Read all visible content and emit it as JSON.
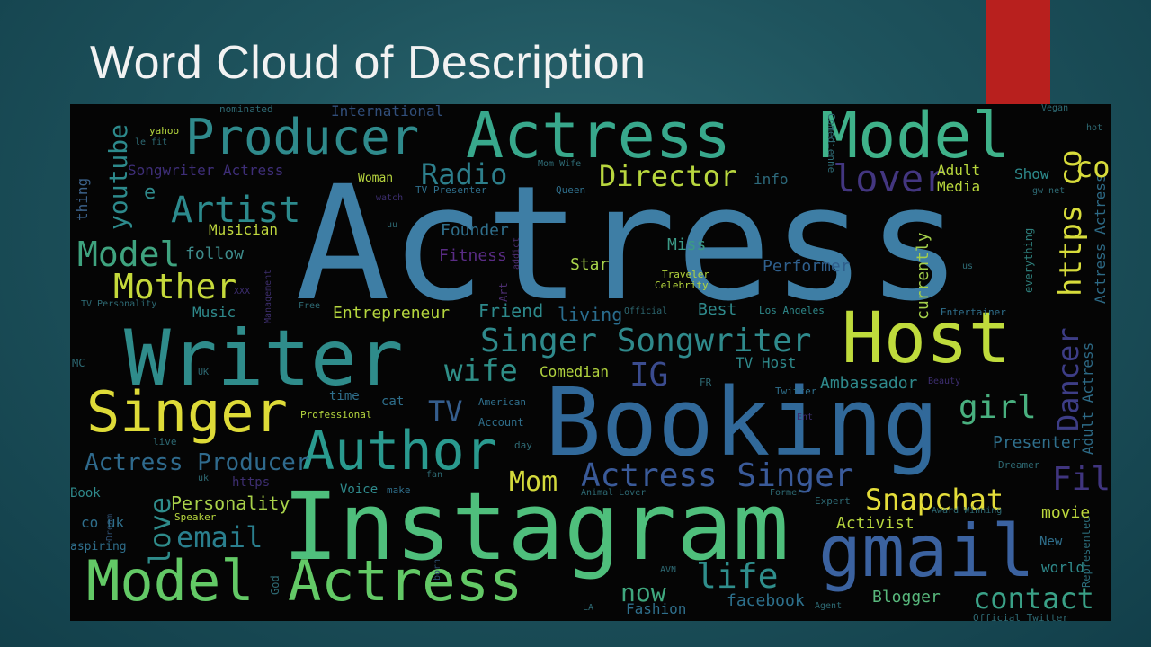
{
  "slide": {
    "title": "Word Cloud of Description",
    "accent_color": "#b8201e"
  },
  "cloud": {
    "background": "#050505",
    "words": {
      "actress_big": "Actress",
      "booking": "Booking",
      "instagram": "Instagram",
      "writer": "Writer",
      "host": "Host",
      "singer": "Singer",
      "author": "Author",
      "gmail": "gmail",
      "model_actress": "Model Actress",
      "producer": "Producer",
      "actress_top": "Actress",
      "model_top": "Model",
      "artist": "Artist",
      "mother": "Mother",
      "model_left": "Model",
      "director": "Director",
      "lover": "lover",
      "radio": "Radio",
      "https_co": "https co",
      "dancer": "Dancer",
      "singer_songwriter": "Singer Songwriter",
      "wife": "wife",
      "ig": "IG",
      "tv": "TV",
      "actress_singer": "Actress Singer",
      "actress_producer": "Actress Producer",
      "mom": "Mom",
      "snapchat": "Snapchat",
      "girl": "girl",
      "film": "Film",
      "email": "email",
      "love": "love",
      "life": "life",
      "now": "now",
      "contact": "contact",
      "youtube": "youtube",
      "personality": "Personality",
      "activist": "Activist",
      "entrepreneur": "Entrepreneur",
      "friend": "Friend",
      "living": "living",
      "best": "Best",
      "star": "Star",
      "miss": "Miss",
      "performer": "Performer",
      "founder": "Founder",
      "fitness": "Fitness",
      "musician": "Musician",
      "follow": "follow",
      "music": "Music",
      "comedian": "Comedian",
      "tv_host": "TV Host",
      "ambassador": "Ambassador",
      "presenter": "Presenter",
      "blogger": "Blogger",
      "facebook": "facebook",
      "fashion": "Fashion",
      "movie": "movie",
      "world": "world",
      "new": "New",
      "show": "Show",
      "adult": "Adult",
      "media": "Media",
      "info": "info",
      "international": "International",
      "songwriter_actress": "Songwriter Actress",
      "woman": "Woman",
      "tv_presenter": "TV Presenter",
      "queen": "Queen",
      "currently": "currently",
      "everything": "everything",
      "entertainer": "Entertainer",
      "los_angeles": "Los Angeles",
      "twitter": "Twitter",
      "book": "Book",
      "co_uk": "co uk",
      "aspiring": "aspiring",
      "speaker": "Speaker",
      "voice": "Voice",
      "make": "make",
      "account": "Account",
      "american": "American",
      "professional": "Professional",
      "time": "time",
      "cat": "cat",
      "animal_lover": "Animal Lover",
      "expert": "Expert",
      "award_winning": "Award Winning",
      "official": "Official",
      "official_twitter": "Official Twitter",
      "traveler": "Traveler",
      "celebrity": "Celebrity",
      "vegan": "Vegan",
      "yahoo": "yahoo",
      "thing": "thing",
      "tv_personality": "TV Personality",
      "mc": "MC",
      "live": "live",
      "dream": "Dream",
      "agent": "Agent",
      "la": "LA",
      "god": "God",
      "uk": "UK",
      "https_small": "https",
      "fr": "FR",
      "beauty": "Beauty",
      "day": "day",
      "born": "born",
      "former": "Former",
      "dreamer": "Dreamer",
      "adult_actress_v": "Adult Actress",
      "actress_actress_v": "Actress Actress",
      "represented": "Represented",
      "comedienne": "Comedienne",
      "nominated": "nominated",
      "art": "Art",
      "addict": "addict",
      "free": "Free",
      "management": "Management",
      "avn": "AVN",
      "xxx": "XXX",
      "mom_wife": "Mom Wife",
      "watch": "watch",
      "uu": "uu",
      "fan": "fan",
      "e": "e",
      "co": "co",
      "us": "us",
      "uk_small": "uk",
      "hot": "hot",
      "ent": "Ent",
      "le_fit": "le fit",
      "gw_net": "gw net"
    }
  }
}
